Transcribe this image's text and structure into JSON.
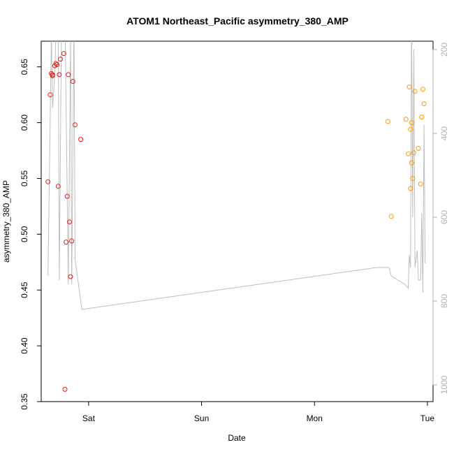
{
  "chart_data": {
    "type": "scatter",
    "title": "ATOM1 Northeast_Pacific asymmetry_380_AMP",
    "xlabel": "Date",
    "ylabel": "asymmetry_380_AMP",
    "x_tick_labels": [
      "Sat",
      "Sun",
      "Mon",
      "Tue"
    ],
    "x_tick_values": [
      1,
      2,
      3,
      4
    ],
    "xlim": [
      0.58,
      4.05
    ],
    "ylim": [
      0.35,
      0.673
    ],
    "y_ticks": [
      0.35,
      0.4,
      0.45,
      0.5,
      0.55,
      0.6,
      0.65
    ],
    "y_tick_labels": [
      "0.35",
      "0.40",
      "0.45",
      "0.50",
      "0.55",
      "0.60",
      "0.65"
    ],
    "y2_axis": {
      "ticks": [
        200,
        400,
        600,
        800,
        1000
      ],
      "tick_labels": [
        "200",
        "400",
        "600",
        "800",
        "1000"
      ],
      "range_top": 180,
      "range_bottom": 1040,
      "color": "#b3b3b3"
    },
    "grid": false,
    "series": [
      {
        "color": "#e41a1c",
        "marker": "open-circle",
        "points": [
          [
            0.64,
            0.547
          ],
          [
            0.66,
            0.625
          ],
          [
            0.67,
            0.644
          ],
          [
            0.68,
            0.643
          ],
          [
            0.68,
            0.642
          ],
          [
            0.7,
            0.651
          ],
          [
            0.71,
            0.653
          ],
          [
            0.72,
            0.652
          ],
          [
            0.73,
            0.543
          ],
          [
            0.74,
            0.643
          ],
          [
            0.75,
            0.657
          ],
          [
            0.78,
            0.662
          ],
          [
            0.79,
            0.361
          ],
          [
            0.8,
            0.493
          ],
          [
            0.81,
            0.534
          ],
          [
            0.82,
            0.643
          ],
          [
            0.83,
            0.511
          ],
          [
            0.84,
            0.462
          ],
          [
            0.85,
            0.494
          ],
          [
            0.86,
            0.637
          ],
          [
            0.88,
            0.598
          ],
          [
            0.93,
            0.585
          ]
        ]
      },
      {
        "color": "#ff9900",
        "marker": "open-circle",
        "points": [
          [
            3.65,
            0.601
          ],
          [
            3.68,
            0.516
          ],
          [
            3.81,
            0.603
          ],
          [
            3.83,
            0.572
          ],
          [
            3.84,
            0.632
          ],
          [
            3.85,
            0.594
          ],
          [
            3.85,
            0.541
          ],
          [
            3.86,
            0.564
          ],
          [
            3.86,
            0.6
          ],
          [
            3.87,
            0.55
          ],
          [
            3.88,
            0.573
          ],
          [
            3.89,
            0.628
          ],
          [
            3.92,
            0.577
          ],
          [
            3.94,
            0.545
          ],
          [
            3.95,
            0.605
          ],
          [
            3.96,
            0.63
          ],
          [
            3.97,
            0.617
          ]
        ]
      }
    ],
    "depth_line": {
      "color": "#bebebe",
      "axis": "y2",
      "points": [
        [
          0.64,
          740
        ],
        [
          0.67,
          160
        ],
        [
          0.68,
          340
        ],
        [
          0.7,
          260
        ],
        [
          0.71,
          160
        ],
        [
          0.73,
          120
        ],
        [
          0.74,
          750
        ],
        [
          0.76,
          130
        ],
        [
          0.79,
          120
        ],
        [
          0.82,
          760
        ],
        [
          0.84,
          170
        ],
        [
          0.85,
          760
        ],
        [
          0.87,
          130
        ],
        [
          0.88,
          700
        ],
        [
          0.94,
          820
        ],
        [
          3.55,
          720
        ],
        [
          3.66,
          720
        ],
        [
          3.68,
          740
        ],
        [
          3.8,
          760
        ],
        [
          3.83,
          770
        ],
        [
          3.84,
          690
        ],
        [
          3.85,
          720
        ],
        [
          3.86,
          120
        ],
        [
          3.87,
          600
        ],
        [
          3.88,
          200
        ],
        [
          3.89,
          720
        ],
        [
          3.91,
          680
        ],
        [
          3.92,
          750
        ],
        [
          3.94,
          750
        ],
        [
          3.95,
          590
        ],
        [
          3.96,
          780
        ],
        [
          3.97,
          380
        ],
        [
          3.98,
          710
        ]
      ]
    }
  }
}
